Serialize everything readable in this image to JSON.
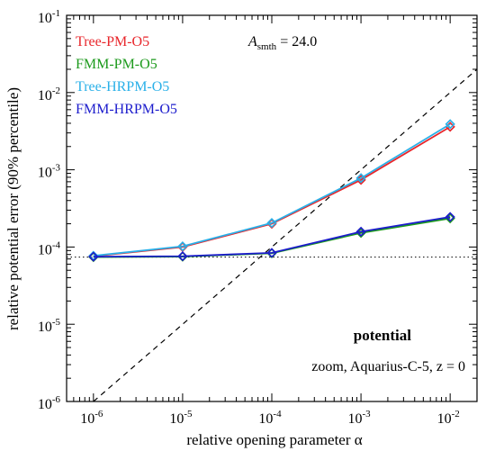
{
  "chart_data": {
    "type": "line",
    "xlabel": "relative opening parameter α",
    "ylabel": "relative potential error (90% percentile)",
    "x_scale": "log",
    "y_scale": "log",
    "xlim": [
      5e-07,
      0.02
    ],
    "ylim": [
      1e-06,
      0.1
    ],
    "x_ticks": [
      {
        "value": 1e-06,
        "base": "10",
        "exp": "-6"
      },
      {
        "value": 1e-05,
        "base": "10",
        "exp": "-5"
      },
      {
        "value": 0.0001,
        "base": "10",
        "exp": "-4"
      },
      {
        "value": 0.001,
        "base": "10",
        "exp": "-3"
      },
      {
        "value": 0.01,
        "base": "10",
        "exp": "-2"
      }
    ],
    "y_ticks": [
      {
        "value": 1e-06,
        "base": "10",
        "exp": "-6"
      },
      {
        "value": 1e-05,
        "base": "10",
        "exp": "-5"
      },
      {
        "value": 0.0001,
        "base": "10",
        "exp": "-4"
      },
      {
        "value": 0.001,
        "base": "10",
        "exp": "-3"
      },
      {
        "value": 0.01,
        "base": "10",
        "exp": "-2"
      },
      {
        "value": 0.1,
        "base": "10",
        "exp": "-1"
      }
    ],
    "grid": false,
    "legend_position": "top-left",
    "series": [
      {
        "name": "Tree-PM-O5",
        "color": "#e8262b",
        "marker": "diamond",
        "x": [
          1e-06,
          1e-05,
          0.0001,
          0.001,
          0.01
        ],
        "y": [
          7.6e-05,
          0.0001,
          0.0002,
          0.00074,
          0.0036
        ]
      },
      {
        "name": "FMM-PM-O5",
        "color": "#1c9a1c",
        "marker": "diamond",
        "x": [
          1e-06,
          1e-05,
          0.0001,
          0.001,
          0.01
        ],
        "y": [
          7.4e-05,
          7.5e-05,
          8.3e-05,
          0.000152,
          0.000235
        ]
      },
      {
        "name": "Tree-HRPM-O5",
        "color": "#2ab0e8",
        "marker": "diamond",
        "x": [
          1e-06,
          1e-05,
          0.0001,
          0.001,
          0.01
        ],
        "y": [
          7.7e-05,
          0.000102,
          0.000205,
          0.00078,
          0.0039
        ]
      },
      {
        "name": "FMM-HRPM-O5",
        "color": "#1c1ccc",
        "marker": "diamond",
        "x": [
          1e-06,
          1e-05,
          0.0001,
          0.001,
          0.01
        ],
        "y": [
          7.5e-05,
          7.6e-05,
          8.4e-05,
          0.000158,
          0.000245
        ]
      }
    ],
    "reference_lines": {
      "dashed_diagonal": {
        "style": "dashed",
        "color": "#000000",
        "x": [
          1e-06,
          0.02
        ],
        "y": [
          1e-06,
          0.02
        ]
      },
      "dotted_horizontal": {
        "style": "dotted",
        "color": "#000000",
        "y": 7.4e-05
      }
    },
    "annotations": {
      "smoothing_symbol": "A",
      "smoothing_subscript": "smth",
      "smoothing_value": " = 24.0",
      "quantity": "potential",
      "run_info": "zoom, Aquarius-C-5, z = 0"
    }
  }
}
